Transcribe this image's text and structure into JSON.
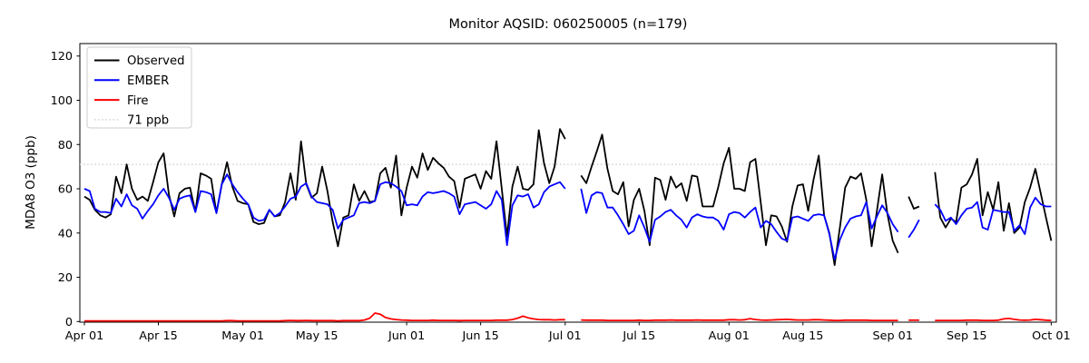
{
  "figure": {
    "title": "Monitor AQSID: 060250005 (n=179)"
  },
  "chart_data": {
    "type": "line",
    "title": "Monitor AQSID: 060250005 (n=179)",
    "xlabel": "",
    "ylabel": "MDA8 O3 (ppb)",
    "x_range": [
      "Apr 01",
      "Oct 01"
    ],
    "n_points_per_series": 184,
    "n_valid_observed": 179,
    "missing_day_indices": [
      92,
      93,
      155,
      159,
      160
    ],
    "ylim": [
      -2,
      126
    ],
    "yticks": [
      0,
      20,
      40,
      60,
      80,
      100,
      120
    ],
    "xtick_labels": [
      "Apr 01",
      "Apr 15",
      "May 01",
      "May 15",
      "Jun 01",
      "Jun 15",
      "Jul 01",
      "Jul 15",
      "Aug 01",
      "Aug 15",
      "Sep 01",
      "Sep 15",
      "Oct 01"
    ],
    "xtick_days": [
      0,
      14,
      30,
      44,
      61,
      75,
      91,
      105,
      122,
      136,
      153,
      167,
      183
    ],
    "grid": false,
    "legend_position": "upper-left",
    "reference_line": {
      "label": "71 ppb",
      "value": 71,
      "color": "#d3d3d3",
      "style": "dotted"
    },
    "legend": [
      {
        "label": "Observed",
        "color": "#000000",
        "dotted": false
      },
      {
        "label": "EMBER",
        "color": "#0000ff",
        "dotted": false
      },
      {
        "label": "Fire",
        "color": "#ff0000",
        "dotted": false
      },
      {
        "label": "71 ppb",
        "color": "#d3d3d3",
        "dotted": true
      }
    ],
    "series": [
      {
        "name": "Observed",
        "color": "#000000",
        "values": [
          56.5,
          55,
          50.5,
          48,
          47,
          48.5,
          65.5,
          58,
          71,
          60,
          55,
          56.5,
          54.5,
          63,
          72,
          76,
          57.5,
          47.5,
          58,
          60,
          60.5,
          49.5,
          67,
          66,
          64.5,
          49,
          62,
          72,
          61,
          54.5,
          53.5,
          53,
          45,
          44,
          44.5,
          50.5,
          47.5,
          48,
          54,
          67,
          55,
          81.5,
          62,
          56,
          58,
          70,
          59,
          45,
          34,
          47,
          48,
          62,
          54.5,
          59,
          54,
          54.5,
          67,
          69.5,
          60.5,
          75,
          48,
          60.5,
          70,
          65,
          76,
          68.5,
          74,
          71.5,
          69.5,
          65.5,
          63.5,
          51.5,
          64.5,
          65.5,
          66.5,
          60,
          68,
          64.5,
          81.5,
          60,
          38.5,
          61,
          70,
          60,
          59.5,
          62,
          86.5,
          71.5,
          62.5,
          70,
          87,
          82.5,
          null,
          null,
          66,
          62.5,
          70,
          77,
          84.5,
          69,
          59,
          57.5,
          63,
          43,
          55,
          60,
          50,
          34.5,
          65,
          64,
          55,
          65.5,
          60.5,
          62.5,
          54.5,
          66,
          65.5,
          52,
          52,
          52,
          61,
          71.5,
          78.5,
          60,
          60,
          59,
          72,
          73.5,
          54,
          34.5,
          48,
          47.5,
          43,
          36,
          52,
          61.5,
          62,
          50,
          64,
          75,
          48,
          40,
          25.5,
          42.5,
          60.5,
          65.5,
          64.5,
          67,
          55,
          34,
          50,
          66.5,
          48.5,
          36.5,
          31,
          null,
          56.5,
          51,
          52,
          null,
          null,
          67.5,
          47,
          42.5,
          46.5,
          45,
          60.5,
          62,
          66.5,
          73.5,
          48,
          58.5,
          50.5,
          63,
          41,
          53.5,
          40,
          42.5,
          54,
          60.5,
          69,
          58,
          47,
          36.5
        ]
      },
      {
        "name": "EMBER",
        "color": "#0000ff",
        "values": [
          60,
          59,
          51,
          49.5,
          49.5,
          49,
          55.5,
          52,
          57.5,
          52.5,
          51,
          46.5,
          50,
          53,
          57,
          60,
          56,
          50.5,
          55.5,
          56.5,
          57,
          49.5,
          59,
          58.5,
          57.5,
          49,
          62,
          66.5,
          62,
          58.5,
          55.5,
          53,
          47,
          45.5,
          46,
          50.5,
          47.5,
          49,
          52,
          55.5,
          56.5,
          61,
          62.5,
          56.5,
          54,
          53.5,
          53,
          50.5,
          42,
          46,
          47,
          48,
          53.5,
          54,
          53.5,
          54.5,
          62,
          63,
          62.5,
          61,
          59,
          52.5,
          53,
          52.5,
          56.5,
          58.5,
          58,
          58.5,
          59,
          58,
          56.5,
          48.5,
          53,
          53.5,
          54,
          52.5,
          51,
          53,
          59,
          55,
          34.5,
          52.5,
          57,
          56.5,
          57.5,
          51.5,
          53,
          58.5,
          61,
          62,
          63,
          60,
          null,
          null,
          60,
          49,
          57,
          58.5,
          58,
          51.5,
          51.5,
          48,
          44,
          39.5,
          41,
          48,
          42.5,
          36,
          46,
          47.5,
          49.5,
          50.5,
          48,
          46,
          42.5,
          47,
          48.5,
          47.5,
          47,
          47,
          45.5,
          41.5,
          48.5,
          49.5,
          49,
          47,
          49.5,
          51.5,
          42.5,
          45.5,
          44,
          40.5,
          37.5,
          36.5,
          47,
          47.5,
          46.5,
          45.5,
          48,
          48.5,
          48,
          39.5,
          28,
          37,
          42.5,
          46.5,
          47.5,
          48,
          54,
          42,
          47.5,
          52.5,
          49,
          44,
          40.5,
          null,
          38,
          41.5,
          46,
          null,
          null,
          53,
          50.5,
          45.5,
          47,
          44,
          48,
          51,
          51.5,
          54,
          42.5,
          41.5,
          50.5,
          50,
          49.5,
          49.5,
          41,
          43.5,
          39.5,
          51.5,
          56,
          53,
          52,
          52
        ]
      },
      {
        "name": "Fire",
        "color": "#ff0000",
        "values": [
          0.3,
          0.3,
          0.3,
          0.3,
          0.3,
          0.3,
          0.3,
          0.3,
          0.3,
          0.3,
          0.3,
          0.3,
          0.3,
          0.3,
          0.3,
          0.3,
          0.3,
          0.3,
          0.3,
          0.3,
          0.3,
          0.3,
          0.3,
          0.3,
          0.3,
          0.3,
          0.3,
          0.4,
          0.4,
          0.3,
          0.3,
          0.3,
          0.3,
          0.3,
          0.3,
          0.3,
          0.3,
          0.3,
          0.4,
          0.5,
          0.4,
          0.4,
          0.5,
          0.4,
          0.4,
          0.4,
          0.4,
          0.4,
          0.3,
          0.4,
          0.4,
          0.4,
          0.4,
          0.7,
          1.5,
          3.8,
          3.3,
          1.8,
          1.2,
          0.9,
          0.7,
          0.6,
          0.5,
          0.5,
          0.5,
          0.5,
          0.6,
          0.5,
          0.5,
          0.5,
          0.5,
          0.4,
          0.5,
          0.5,
          0.5,
          0.5,
          0.5,
          0.5,
          0.6,
          0.6,
          0.6,
          0.9,
          1.5,
          2.4,
          1.7,
          1.2,
          0.9,
          0.8,
          0.8,
          0.7,
          0.8,
          0.8,
          null,
          null,
          0.7,
          0.6,
          0.6,
          0.6,
          0.6,
          0.5,
          0.5,
          0.5,
          0.5,
          0.5,
          0.5,
          0.6,
          0.5,
          0.5,
          0.6,
          0.6,
          0.6,
          0.7,
          0.6,
          0.6,
          0.6,
          0.6,
          0.7,
          0.6,
          0.6,
          0.6,
          0.6,
          0.6,
          0.8,
          0.8,
          0.7,
          0.8,
          1.3,
          0.9,
          0.7,
          0.6,
          0.7,
          0.8,
          0.9,
          1.0,
          0.8,
          0.7,
          0.7,
          0.7,
          0.8,
          0.8,
          0.7,
          0.6,
          0.5,
          0.5,
          0.6,
          0.6,
          0.6,
          0.6,
          0.6,
          0.5,
          0.5,
          0.5,
          0.5,
          0.5,
          0.5,
          null,
          0.6,
          0.6,
          0.6,
          null,
          null,
          0.5,
          0.5,
          0.5,
          0.5,
          0.5,
          0.5,
          0.6,
          0.6,
          0.6,
          0.5,
          0.5,
          0.5,
          0.6,
          1.2,
          1.4,
          1.0,
          0.7,
          0.6,
          0.7,
          1.0,
          0.8,
          0.6,
          0.5
        ]
      }
    ]
  }
}
